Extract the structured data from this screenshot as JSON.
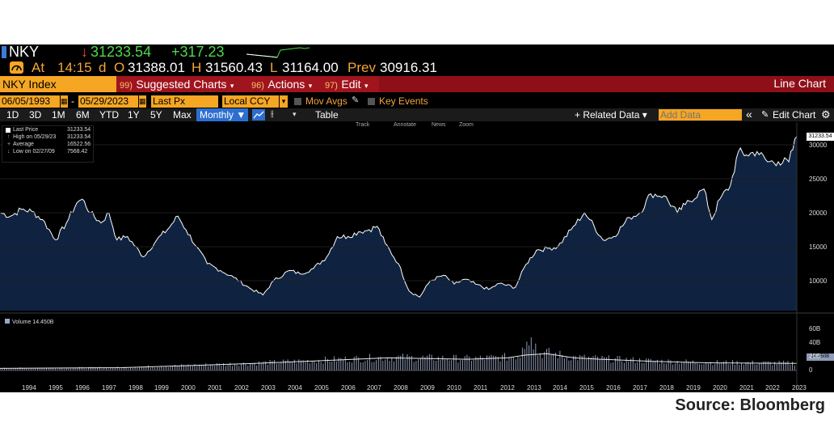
{
  "header": {
    "ticker": "NKY",
    "arrow": "↓",
    "last": "31233.54",
    "change": "+317.23",
    "at_label": "At",
    "time": "14:15",
    "d_label": "d",
    "open_label": "O",
    "open": "31388.01",
    "high_label": "H",
    "high": "31560.43",
    "low_label": "L",
    "low": "31164.00",
    "prev_label": "Prev",
    "prev": "30916.31"
  },
  "menu": {
    "security": "NKY Index",
    "suggested_num": "99)",
    "suggested": "Suggested Charts",
    "actions_num": "96)",
    "actions": "Actions",
    "edit_num": "97)",
    "edit": "Edit",
    "right_title": "Line Chart"
  },
  "settings": {
    "start_date": "06/05/1993",
    "end_date": "05/29/2023",
    "field": "Last Px",
    "currency": "Local CCY",
    "mov_avgs": "Mov Avgs",
    "key_events": "Key Events"
  },
  "toolbar": {
    "periods": [
      "1D",
      "3D",
      "1M",
      "6M",
      "YTD",
      "1Y",
      "5Y",
      "Max"
    ],
    "frequency": "Monthly ▼",
    "table": "Table",
    "related": "+ Related Data ▾",
    "add_data_placeholder": "Add Data",
    "collapse": "«",
    "edit_chart": "Edit Chart",
    "tools": [
      "Track",
      "Annotate",
      "News",
      "Zoom"
    ]
  },
  "legend": {
    "rows": [
      {
        "label": "Last Price",
        "value": "31233.54"
      },
      {
        "label": "High on 05/29/23",
        "value": "31233.54"
      },
      {
        "label": "Average",
        "value": "16522.56"
      },
      {
        "label": "Low on 02/27/09",
        "value": "7568.42"
      }
    ],
    "volume_label": "Volume",
    "volume_value": "14.450B"
  },
  "axes": {
    "price_ticks": [
      "30000",
      "25000",
      "20000",
      "15000",
      "10000"
    ],
    "price_tag": "31233.54",
    "volume_ticks": [
      "60B",
      "40B",
      "20B",
      "0"
    ],
    "volume_tag": "14.450B",
    "years": [
      "1994",
      "1995",
      "1996",
      "1997",
      "1998",
      "1999",
      "2000",
      "2001",
      "2002",
      "2003",
      "2004",
      "2005",
      "2006",
      "2007",
      "2008",
      "2009",
      "2010",
      "2011",
      "2012",
      "2013",
      "2014",
      "2015",
      "2016",
      "2017",
      "2018",
      "2019",
      "2020",
      "2021",
      "2022",
      "2023"
    ]
  },
  "chart_data": {
    "type": "area",
    "x": [
      1993.4,
      1993.8,
      1994.2,
      1994.6,
      1995.0,
      1995.5,
      1995.9,
      1996.3,
      1996.5,
      1996.8,
      1997.2,
      1997.5,
      1997.8,
      1998.2,
      1998.8,
      1999.3,
      1999.7,
      2000.1,
      2000.4,
      2000.8,
      2001.2,
      2001.7,
      2002.2,
      2002.8,
      2003.3,
      2003.7,
      2004.3,
      2004.7,
      2005.2,
      2005.7,
      2006.1,
      2006.5,
      2006.9,
      2007.3,
      2007.6,
      2007.9,
      2008.4,
      2008.8,
      2009.2,
      2009.6,
      2010.1,
      2010.5,
      2010.9,
      2011.3,
      2011.8,
      2012.2,
      2012.8,
      2013.2,
      2013.6,
      2014.1,
      2014.4,
      2014.9,
      2015.4,
      2015.6,
      2016.1,
      2016.5,
      2017.1,
      2017.5,
      2017.9,
      2018.4,
      2018.9,
      2019.2,
      2019.9,
      2020.2,
      2020.5,
      2020.9,
      2021.2,
      2021.5,
      2021.9,
      2022.3,
      2022.7,
      2023.1,
      2023.4
    ],
    "y": [
      20000,
      19500,
      20500,
      20200,
      19000,
      16000,
      18500,
      21500,
      22000,
      20000,
      18500,
      20000,
      16000,
      16500,
      13500,
      16000,
      17500,
      19500,
      17500,
      15000,
      12500,
      11500,
      10500,
      8900,
      7900,
      10000,
      11500,
      11000,
      11800,
      13500,
      16500,
      16500,
      17200,
      17500,
      18000,
      15500,
      12500,
      8500,
      7600,
      10000,
      10800,
      9500,
      10200,
      9500,
      8700,
      9600,
      9000,
      12400,
      14500,
      14800,
      15000,
      17500,
      20000,
      19000,
      16000,
      16500,
      19300,
      20000,
      22800,
      22500,
      20000,
      21200,
      23500,
      19000,
      22000,
      24000,
      29000,
      28500,
      29000,
      27500,
      27500,
      27500,
      31233.54
    ],
    "ylim": [
      7000,
      32000
    ],
    "xlim": [
      1993.4,
      2023.4
    ],
    "volume_scale": "0–60B",
    "volume_avg_x": [
      1993.4,
      1998,
      2003,
      2005.5,
      2008,
      2011,
      2012.5,
      2013.2,
      2014,
      2015,
      2016,
      2018,
      2020,
      2023.4
    ],
    "volume_avg_y": [
      3,
      4,
      10,
      14,
      18,
      16,
      18,
      22,
      24,
      18,
      16,
      13,
      11,
      10
    ]
  },
  "colors": {
    "up": "#4cd94c",
    "down": "#ff4040",
    "amber": "#f5a623",
    "menu_red": "#a0141e",
    "area_fill": "#0f2341",
    "line": "#ffffff"
  },
  "source": "Source: Bloomberg"
}
